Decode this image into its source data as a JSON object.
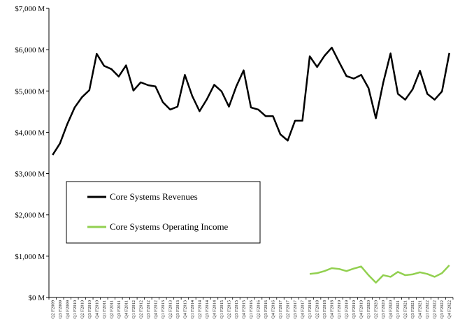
{
  "chart_data": {
    "type": "line",
    "title": "",
    "xlabel": "",
    "ylabel": "",
    "ylim": [
      0,
      7000
    ],
    "grid": false,
    "legend_position": "center-left",
    "y_ticks": [
      {
        "value": 0,
        "label": "$0 M"
      },
      {
        "value": 1000,
        "label": "$1,000 M"
      },
      {
        "value": 2000,
        "label": "$2,000 M"
      },
      {
        "value": 3000,
        "label": "$3,000 M"
      },
      {
        "value": 4000,
        "label": "$4,000 M"
      },
      {
        "value": 5000,
        "label": "$5,000 M"
      },
      {
        "value": 6000,
        "label": "$6,000 M"
      },
      {
        "value": 7000,
        "label": "$7,000 M"
      }
    ],
    "categories": [
      "Q2 F2009",
      "Q3 F2009",
      "Q4 F2009",
      "Q1 F2010",
      "Q2 F2010",
      "Q3 F2010",
      "Q4 F2010",
      "Q1 F2011",
      "Q2 F2011",
      "Q3 F2011",
      "Q4 F2011",
      "Q1 F2012",
      "Q2 F2012",
      "Q3 F2012",
      "Q4 F2012",
      "Q1 F2013",
      "Q2 F2013",
      "Q3 F2013",
      "Q4 F2013",
      "Q1 F2014",
      "Q2 F2014",
      "Q3 F2014",
      "Q4 F2014",
      "Q1 F2015",
      "Q2 F2015",
      "Q3 F2015",
      "Q4 F2015",
      "Q1 F2016",
      "Q2 F2016",
      "Q3 F2016",
      "Q4 F2016",
      "Q1 F2017",
      "Q2 F2017",
      "Q3 F2017",
      "Q4 F2017",
      "Q1 F2018",
      "Q2 F2018",
      "Q3 F2018",
      "Q4 F2018",
      "Q1 F2019",
      "Q2 F2019",
      "Q3 F2019",
      "Q4 F2019",
      "Q1 F2020",
      "Q2 F2020",
      "Q3 F2020",
      "Q4 F2020",
      "Q1 F2021",
      "Q2 F2021",
      "Q3 F2021",
      "Q4 F2021",
      "Q1 F2022",
      "Q2 F2022",
      "Q3 F2022",
      "Q4 F2022"
    ],
    "series": [
      {
        "name": "Core Systems Revenues",
        "color": "#000000",
        "values": [
          3450,
          3730,
          4200,
          4600,
          4850,
          5020,
          5900,
          5610,
          5530,
          5350,
          5620,
          5010,
          5210,
          5140,
          5110,
          4730,
          4550,
          4620,
          5390,
          4880,
          4510,
          4800,
          5150,
          4990,
          4620,
          5110,
          5500,
          4600,
          4550,
          4390,
          4390,
          3950,
          3800,
          4280,
          4280,
          5840,
          5580,
          5850,
          6050,
          5700,
          5360,
          5300,
          5390,
          5070,
          4340,
          5200,
          5910,
          4930,
          4790,
          5040,
          5490,
          4930,
          4790,
          4990,
          5920
        ]
      },
      {
        "name": "Core Systems Operating Income",
        "color": "#92d050",
        "values": [
          null,
          null,
          null,
          null,
          null,
          null,
          null,
          null,
          null,
          null,
          null,
          null,
          null,
          null,
          null,
          null,
          null,
          null,
          null,
          null,
          null,
          null,
          null,
          null,
          null,
          null,
          null,
          null,
          null,
          null,
          null,
          null,
          null,
          null,
          null,
          570,
          590,
          640,
          710,
          690,
          640,
          700,
          750,
          540,
          360,
          540,
          500,
          620,
          540,
          560,
          610,
          570,
          500,
          590,
          780
        ]
      }
    ]
  }
}
